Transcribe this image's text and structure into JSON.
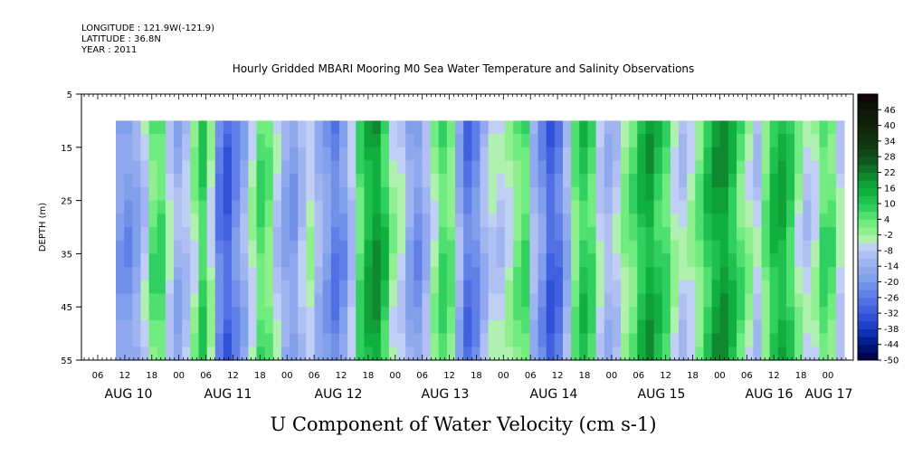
{
  "header": {
    "longitude": "LONGITUDE : 121.9W(-121.9)",
    "latitude": "LATITUDE : 36.8N",
    "year": "YEAR : 2011"
  },
  "chart_data": {
    "type": "heatmap",
    "title": "Hourly Gridded MBARI Mooring M0 Sea Water Temperature and Salinity Observations",
    "ylabel": "DEPTH (m)",
    "xlabel": "U Component of Water Velocity (cm s-1)",
    "y_ticks": [
      5,
      15,
      25,
      35,
      45,
      55
    ],
    "ylim": [
      5,
      55
    ],
    "y_inverted": true,
    "data_depth_range": [
      10,
      55
    ],
    "x_hour_ticks": [
      "06",
      "12",
      "18",
      "00",
      "06",
      "12",
      "18",
      "00",
      "06",
      "12",
      "18",
      "00",
      "06",
      "12",
      "18",
      "00",
      "06",
      "12",
      "18",
      "00",
      "06",
      "12",
      "18",
      "00",
      "06",
      "12",
      "18",
      "00"
    ],
    "x_day_labels": [
      "AUG 10",
      "AUG 11",
      "AUG 12",
      "AUG 13",
      "AUG 14",
      "AUG 15",
      "AUG 16",
      "AUG 17"
    ],
    "colorbar": {
      "labels": [
        46,
        40,
        34,
        28,
        22,
        16,
        10,
        4,
        -2,
        -8,
        -14,
        -20,
        -26,
        -32,
        -38,
        -44,
        -50
      ],
      "min": -50,
      "max": 52,
      "step": 3,
      "colors": [
        "#000050",
        "#001070",
        "#002090",
        "#1030b0",
        "#2040c8",
        "#3050d8",
        "#4060e0",
        "#5070e4",
        "#6080e8",
        "#7090ea",
        "#80a0ec",
        "#90a8ee",
        "#a0b4f0",
        "#b0c0f2",
        "#c0d0f4",
        "#b0f0b0",
        "#90f090",
        "#70ec80",
        "#50e070",
        "#30d060",
        "#20c050",
        "#10b040",
        "#10a038",
        "#108830",
        "#107028",
        "#105820",
        "#104818",
        "#103810",
        "#103010",
        "#102808",
        "#102008",
        "#101808",
        "#101008",
        "#100808"
      ]
    },
    "time_columns": {
      "comment": "Mean U velocity (cm/s) per time column, read approximately from image (left to right)",
      "values": [
        -18,
        -20,
        -16,
        -8,
        4,
        6,
        -6,
        -14,
        -10,
        -2,
        8,
        -4,
        -24,
        -30,
        -22,
        -14,
        -4,
        6,
        2,
        -8,
        -16,
        -18,
        -10,
        -4,
        -12,
        -18,
        -24,
        -20,
        -10,
        6,
        14,
        18,
        10,
        -2,
        -6,
        -16,
        -20,
        -12,
        -2,
        6,
        2,
        -14,
        -26,
        -22,
        -12,
        -6,
        -8,
        -4,
        2,
        6,
        -12,
        -20,
        -30,
        -26,
        -14,
        2,
        10,
        6,
        -6,
        -12,
        -8,
        0,
        4,
        12,
        16,
        10,
        6,
        -4,
        -8,
        -4,
        2,
        10,
        16,
        18,
        12,
        4,
        -2,
        -8,
        2,
        12,
        14,
        8,
        -2,
        -8,
        -4,
        6,
        4,
        -6
      ]
    }
  }
}
